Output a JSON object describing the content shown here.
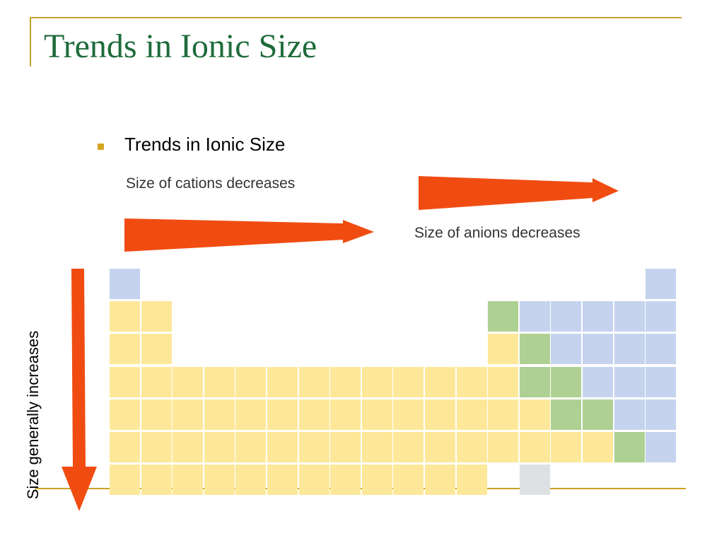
{
  "slide": {
    "title": "Trends in Ionic Size",
    "bullet": "Trends in Ionic Size",
    "cations_label": "Size of cations decreases",
    "anions_label": "Size of anions decreases",
    "vertical_label": "Size generally increases"
  },
  "colors": {
    "accent_gold": "#c9a227",
    "title_green": "#1e6b3a",
    "arrow_orange": "#f04c12",
    "cell_yellow": "#fde89a",
    "cell_blue": "#c5d3ee",
    "cell_green": "#aed093",
    "cell_gray": "#dde1e3"
  },
  "periodic_table": {
    "legend": {
      "Y": "yellow",
      "B": "blue",
      "G": "green",
      "X": "gray"
    },
    "rows": [
      "B................B",
      "YY..........GBBBBB",
      "YY..........YGBBBB",
      "YYYYYYYYYYYYYGGBBB",
      "YYYYYYYYYYYYYYGGBB",
      "YYYYYYYYYYYYYYYYGB",
      "YYYYYYYYYYYY.X...."
    ]
  }
}
